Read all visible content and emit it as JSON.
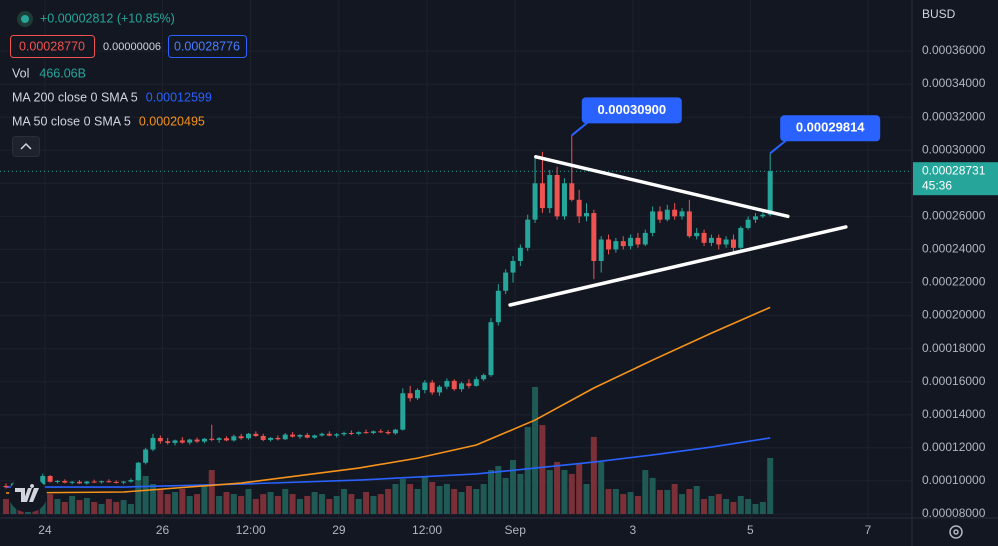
{
  "chart_data": {
    "type": "candlestick",
    "currency": "BUSD",
    "change_label": "+0.00002812 (+10.85%)",
    "bid_label": "0.00028770",
    "spread_label": "0.00000006",
    "ask_label": "0.00028776",
    "volume_title": "Vol",
    "volume_label": "466.06B",
    "up_color": "#26a69a",
    "down_color": "#ef5350",
    "vol_up_color": "#1f5a55",
    "vol_down_color": "#7a3036",
    "xlim": [
      -0.82,
      123.3
    ],
    "ylim": [
      8e-05,
      0.00039084
    ],
    "vlim": [
      0,
      2080
    ],
    "grid": true,
    "xticks": [
      {
        "value": 5.3,
        "label": "24"
      },
      {
        "value": 21.3,
        "label": "26"
      },
      {
        "value": 33.3,
        "label": "12:00"
      },
      {
        "value": 45.3,
        "label": "29"
      },
      {
        "value": 57.3,
        "label": "12:00"
      },
      {
        "value": 69.3,
        "label": "Sep"
      },
      {
        "value": 85.3,
        "label": "3"
      },
      {
        "value": 101.3,
        "label": "5"
      },
      {
        "value": 117.3,
        "label": "7"
      }
    ],
    "yticks": [
      {
        "value": 8e-05,
        "label": "0.00008000"
      },
      {
        "value": 0.0001,
        "label": "0.00010000"
      },
      {
        "value": 0.00012,
        "label": "0.00012000"
      },
      {
        "value": 0.00014,
        "label": "0.00014000"
      },
      {
        "value": 0.00016,
        "label": "0.00016000"
      },
      {
        "value": 0.00018,
        "label": "0.00018000"
      },
      {
        "value": 0.0002,
        "label": "0.00020000"
      },
      {
        "value": 0.00022,
        "label": "0.00022000"
      },
      {
        "value": 0.00024,
        "label": "0.00024000"
      },
      {
        "value": 0.00026,
        "label": "0.00026000"
      },
      {
        "value": 0.00028,
        "label": "0.00028000"
      },
      {
        "value": 0.0003,
        "label": "0.00030000"
      },
      {
        "value": 0.00032,
        "label": "0.00032000"
      },
      {
        "value": 0.00034,
        "label": "0.00034000"
      },
      {
        "value": 0.00036,
        "label": "0.00036000"
      }
    ],
    "last_price": 0.00028731,
    "last_price_label": "0.00028731",
    "countdown": "45:36",
    "ohlc": [
      [
        9.7e-05,
        9.85e-05,
        9.55e-05,
        9.62e-05
      ],
      [
        9.62e-05,
        9.9e-05,
        9.58e-05,
        9.85e-05
      ],
      [
        9.85e-05,
        9.95e-05,
        9.65e-05,
        9.7e-05
      ],
      [
        9.7e-05,
        9.9e-05,
        9.6e-05,
        9.82e-05
      ],
      [
        9.82e-05,
        0.0001,
        9.75e-05,
        9.78e-05
      ],
      [
        9.78e-05,
        0.0001045,
        9.75e-05,
        0.000103
      ],
      [
        0.000103,
        0.0001035,
        9.9e-05,
        9.95e-05
      ],
      [
        9.95e-05,
        0.0001005,
        9.85e-05,
        0.0001
      ],
      [
        0.0001,
        0.000101,
        9.85e-05,
        9.9e-05
      ],
      [
        9.9e-05,
        0.0001,
        9.8e-05,
        9.95e-05
      ],
      [
        9.95e-05,
        0.0001005,
        9.82e-05,
        9.85e-05
      ],
      [
        9.85e-05,
        0.0001,
        9.78e-05,
        9.96e-05
      ],
      [
        9.96e-05,
        0.0001008,
        9.88e-05,
        9.92e-05
      ],
      [
        9.92e-05,
        0.0001002,
        9.84e-05,
        9.98e-05
      ],
      [
        9.98e-05,
        0.000101,
        9.9e-05,
        9.94e-05
      ],
      [
        9.94e-05,
        0.0001003,
        9.85e-05,
        9.9e-05
      ],
      [
        9.9e-05,
        0.0001,
        9.8e-05,
        9.96e-05
      ],
      [
        9.96e-05,
        0.0001015,
        9.9e-05,
        0.0001005
      ],
      [
        0.0001005,
        0.0001115,
        0.0001,
        0.000111
      ],
      [
        0.000111,
        0.00012,
        0.00011,
        0.000119
      ],
      [
        0.000119,
        0.0001285,
        0.000118,
        0.000126
      ],
      [
        0.000126,
        0.0001275,
        0.0001225,
        0.000124
      ],
      [
        0.000124,
        0.000126,
        0.000122,
        0.000123
      ],
      [
        0.000123,
        0.000125,
        0.0001215,
        0.0001245
      ],
      [
        0.0001245,
        0.0001265,
        0.0001225,
        0.0001232
      ],
      [
        0.0001232,
        0.0001255,
        0.000122,
        0.000125
      ],
      [
        0.000125,
        0.0001262,
        0.000123,
        0.0001238
      ],
      [
        0.0001238,
        0.000126,
        0.0001228,
        0.0001255
      ],
      [
        0.0001255,
        0.000134,
        0.000124,
        0.0001248
      ],
      [
        0.0001248,
        0.0001265,
        0.000123,
        0.0001258
      ],
      [
        0.0001258,
        0.000127,
        0.000124,
        0.0001245
      ],
      [
        0.0001245,
        0.000128,
        0.0001238,
        0.000127
      ],
      [
        0.000127,
        0.0001285,
        0.000125,
        0.0001258
      ],
      [
        0.0001258,
        0.000129,
        0.000125,
        0.0001285
      ],
      [
        0.0001285,
        0.00013,
        0.0001265,
        0.0001272
      ],
      [
        0.0001272,
        0.0001285,
        0.000124,
        0.0001248
      ],
      [
        0.0001248,
        0.0001265,
        0.0001238,
        0.000126
      ],
      [
        0.000126,
        0.0001275,
        0.0001245,
        0.0001252
      ],
      [
        0.0001252,
        0.000129,
        0.0001248,
        0.000128
      ],
      [
        0.000128,
        0.0001295,
        0.0001262,
        0.0001268
      ],
      [
        0.0001268,
        0.0001282,
        0.0001255,
        0.0001278
      ],
      [
        0.0001278,
        0.000129,
        0.0001258,
        0.0001262
      ],
      [
        0.0001262,
        0.000128,
        0.0001255,
        0.0001275
      ],
      [
        0.0001275,
        0.0001292,
        0.0001268,
        0.0001285
      ],
      [
        0.0001285,
        0.00013,
        0.000127,
        0.0001274
      ],
      [
        0.0001274,
        0.000129,
        0.0001262,
        0.0001282
      ],
      [
        0.0001282,
        0.0001298,
        0.0001272,
        0.000129
      ],
      [
        0.000129,
        0.0001305,
        0.0001278,
        0.0001285
      ],
      [
        0.0001285,
        0.00013,
        0.0001276,
        0.0001295
      ],
      [
        0.0001295,
        0.000131,
        0.0001285,
        0.000129
      ],
      [
        0.000129,
        0.0001305,
        0.0001282,
        0.00013
      ],
      [
        0.00013,
        0.0001312,
        0.000129,
        0.0001296
      ],
      [
        0.0001296,
        0.0001308,
        0.000128,
        0.0001288
      ],
      [
        0.0001288,
        0.0001315,
        0.000128,
        0.000131
      ],
      [
        0.000131,
        0.000156,
        0.0001305,
        0.000153
      ],
      [
        0.000153,
        0.0001575,
        0.000148,
        0.00015
      ],
      [
        0.00015,
        0.000156,
        0.000149,
        0.000155
      ],
      [
        0.000155,
        0.000161,
        0.000153,
        0.0001595
      ],
      [
        0.0001595,
        0.000161,
        0.000152,
        0.0001535
      ],
      [
        0.0001535,
        0.000158,
        0.0001515,
        0.000157
      ],
      [
        0.000157,
        0.000162,
        0.0001555,
        0.0001605
      ],
      [
        0.0001605,
        0.0001615,
        0.0001545,
        0.0001555
      ],
      [
        0.0001555,
        0.00016,
        0.000154,
        0.000159
      ],
      [
        0.000159,
        0.0001615,
        0.000156,
        0.0001575
      ],
      [
        0.0001575,
        0.000163,
        0.000157,
        0.0001615
      ],
      [
        0.0001615,
        0.000165,
        0.0001605,
        0.000164
      ],
      [
        0.000164,
        0.0001985,
        0.000163,
        0.000196
      ],
      [
        0.000196,
        0.000219,
        0.000194,
        0.000215
      ],
      [
        0.000215,
        0.000228,
        0.000213,
        0.000226
      ],
      [
        0.000226,
        0.000236,
        0.00022,
        0.000233
      ],
      [
        0.000233,
        0.000243,
        0.00023,
        0.000241
      ],
      [
        0.000241,
        0.000261,
        0.000239,
        0.000258
      ],
      [
        0.000258,
        0.000297,
        0.000256,
        0.00028
      ],
      [
        0.00028,
        0.000299,
        0.000262,
        0.000265
      ],
      [
        0.000265,
        0.000288,
        0.000262,
        0.000285
      ],
      [
        0.000285,
        0.00029,
        0.000258,
        0.00026
      ],
      [
        0.00026,
        0.000283,
        0.000258,
        0.00028
      ],
      [
        0.00028,
        0.000309,
        0.000269,
        0.00027
      ],
      [
        0.00027,
        0.000276,
        0.000256,
        0.00026
      ],
      [
        0.00026,
        0.000268,
        0.000257,
        0.000262
      ],
      [
        0.000262,
        0.000264,
        0.000222,
        0.000233
      ],
      [
        0.000233,
        0.000248,
        0.000226,
        0.000246
      ],
      [
        0.000246,
        0.000249,
        0.000237,
        0.00024
      ],
      [
        0.00024,
        0.000247,
        0.000238,
        0.000245
      ],
      [
        0.000245,
        0.000248,
        0.00024,
        0.000242
      ],
      [
        0.000242,
        0.000249,
        0.00024,
        0.000247
      ],
      [
        0.000247,
        0.00025,
        0.000241,
        0.000243
      ],
      [
        0.000243,
        0.000252,
        0.000242,
        0.00025
      ],
      [
        0.00025,
        0.000266,
        0.000248,
        0.000263
      ],
      [
        0.000263,
        0.000266,
        0.000256,
        0.000258
      ],
      [
        0.000258,
        0.000267,
        0.000257,
        0.000264
      ],
      [
        0.000264,
        0.000268,
        0.000258,
        0.00026
      ],
      [
        0.00026,
        0.000265,
        0.000258,
        0.000263
      ],
      [
        0.000263,
        0.00027,
        0.000247,
        0.000248
      ],
      [
        0.000248,
        0.000253,
        0.000246,
        0.00025
      ],
      [
        0.00025,
        0.000252,
        0.000242,
        0.000244
      ],
      [
        0.000244,
        0.000249,
        0.000242,
        0.000247
      ],
      [
        0.000247,
        0.000249,
        0.00024,
        0.000243
      ],
      [
        0.000243,
        0.000248,
        0.000241,
        0.000246
      ],
      [
        0.000246,
        0.000249,
        0.000238,
        0.000241
      ],
      [
        0.000241,
        0.000254,
        0.00024,
        0.000253
      ],
      [
        0.000253,
        0.00026,
        0.000252,
        0.000258
      ],
      [
        0.000258,
        0.000262,
        0.000256,
        0.00026
      ],
      [
        0.00026,
        0.000264,
        0.000259,
        0.000261
      ],
      [
        0.000261,
        0.00029814,
        0.00026,
        0.00028731
      ]
    ],
    "volume": [
      125,
      166,
      100,
      150,
      83,
      208,
      166,
      125,
      100,
      150,
      116,
      133,
      100,
      83,
      125,
      100,
      116,
      83,
      374,
      316,
      250,
      208,
      166,
      183,
      208,
      150,
      166,
      233,
      366,
      150,
      183,
      166,
      150,
      208,
      125,
      166,
      183,
      150,
      208,
      166,
      125,
      150,
      183,
      166,
      125,
      150,
      208,
      166,
      125,
      183,
      150,
      166,
      208,
      250,
      291,
      250,
      208,
      316,
      266,
      233,
      250,
      208,
      183,
      233,
      208,
      250,
      366,
      399,
      300,
      449,
      333,
      724,
      1057,
      740,
      366,
      433,
      366,
      333,
      416,
      250,
      641,
      433,
      208,
      208,
      166,
      183,
      150,
      366,
      300,
      200,
      200,
      250,
      166,
      208,
      233,
      125,
      150,
      166,
      125,
      100,
      150,
      125,
      83,
      100,
      466.06
    ],
    "moving_averages": [
      {
        "name": "MA 200 close 0 SMA 5",
        "value_label": "0.00012599",
        "color": "#2962ff",
        "x": [
          0,
          16,
          32,
          48,
          64,
          72,
          80,
          88,
          96,
          104
        ],
        "values": [
          9.63e-05,
          9.63e-05,
          9.81e-05,
          0.0001005,
          0.0001042,
          0.0001078,
          0.0001114,
          0.0001157,
          0.0001205,
          0.00012599
        ]
      },
      {
        "name": "MA 50 close 0 SMA 5",
        "value_label": "0.00020495",
        "color": "#f7931a",
        "x": [
          0,
          16,
          32,
          48,
          56,
          64,
          72,
          80,
          88,
          96,
          104
        ],
        "values": [
          9.27e-05,
          9.33e-05,
          9.87e-05,
          0.0001078,
          0.0001138,
          0.0001217,
          0.0001368,
          0.0001562,
          0.0001731,
          0.0001894,
          0.00020495
        ]
      }
    ],
    "trendlines": [
      {
        "x": [
          72.1,
          106.4
        ],
        "y": [
          0.000296,
          0.00026
        ]
      },
      {
        "x": [
          68.6,
          114.3
        ],
        "y": [
          0.0002064,
          0.0002536
        ]
      }
    ],
    "annotations": [
      {
        "label": "0.00030900",
        "x": 77,
        "y": 0.000309
      },
      {
        "label": "0.00029814",
        "x": 104,
        "y": 0.00029814
      }
    ]
  }
}
